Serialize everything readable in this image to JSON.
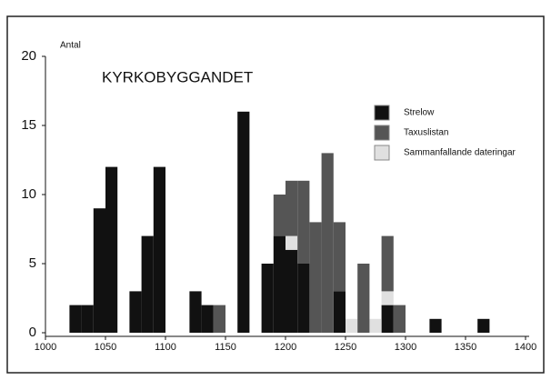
{
  "chart_data": {
    "type": "histogram",
    "title": "KYRKOBYGGANDET",
    "y_label": "Antal",
    "bins": [
      1020,
      1030,
      1040,
      1050,
      1060,
      1070,
      1080,
      1090,
      1100,
      1110,
      1120,
      1130,
      1140,
      1150,
      1160,
      1170,
      1180,
      1190,
      1200,
      1210,
      1220,
      1230,
      1240,
      1250,
      1260,
      1270,
      1280,
      1290,
      1300,
      1310,
      1320,
      1330,
      1340,
      1350,
      1360,
      1370
    ],
    "series": [
      {
        "name": "Strelow",
        "color": "#111111",
        "values": [
          2,
          2,
          9,
          12,
          0,
          3,
          7,
          12,
          0,
          0,
          3,
          2,
          0,
          0,
          16,
          0,
          5,
          7,
          6,
          5,
          0,
          0,
          3,
          0,
          0,
          0,
          2,
          0,
          0,
          0,
          1,
          0,
          0,
          0,
          1
        ]
      },
      {
        "name": "Sammanfallande dateringar",
        "color": "#e0e0e0",
        "values": [
          0,
          0,
          0,
          0,
          0,
          0,
          0,
          0,
          0,
          0,
          0,
          0,
          0,
          0,
          0,
          0,
          0,
          0,
          1,
          0,
          0,
          0,
          0,
          1,
          0,
          1,
          1,
          0,
          0,
          0,
          0,
          0,
          0,
          0,
          0
        ]
      },
      {
        "name": "Taxuslistan",
        "color": "#555555",
        "values": [
          0,
          0,
          0,
          0,
          0,
          0,
          0,
          0,
          0,
          0,
          0,
          0,
          2,
          0,
          0,
          0,
          0,
          3,
          4,
          6,
          8,
          13,
          5,
          0,
          5,
          0,
          4,
          2,
          0,
          0,
          0,
          0,
          0,
          0,
          0
        ]
      }
    ],
    "legend_order": [
      0,
      2,
      1
    ],
    "xlim": [
      1000,
      1400
    ],
    "xticks": [
      1000,
      1050,
      1100,
      1150,
      1200,
      1250,
      1300,
      1350,
      1400
    ],
    "ylim": [
      0,
      20
    ],
    "yticks": [
      0,
      5,
      10,
      15,
      20
    ]
  }
}
